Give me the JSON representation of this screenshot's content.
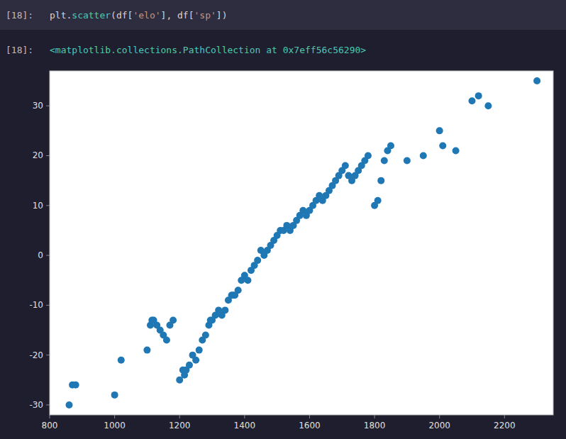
{
  "chart_data": {
    "type": "scatter",
    "annotations": [
      "[18]:",
      "plt.scatter(df['elo'], df['sp'])",
      "[18]:",
      "<matplotlib.collections.PathCollection at 0x7eff56c56290>"
    ],
    "x": [
      860,
      870,
      880,
      1000,
      1020,
      1100,
      1110,
      1115,
      1120,
      1130,
      1140,
      1150,
      1160,
      1170,
      1180,
      1200,
      1210,
      1215,
      1220,
      1230,
      1240,
      1250,
      1260,
      1270,
      1280,
      1290,
      1295,
      1300,
      1310,
      1320,
      1330,
      1340,
      1350,
      1360,
      1365,
      1370,
      1380,
      1390,
      1400,
      1410,
      1420,
      1430,
      1440,
      1450,
      1460,
      1470,
      1480,
      1490,
      1500,
      1510,
      1520,
      1530,
      1540,
      1550,
      1560,
      1570,
      1580,
      1590,
      1600,
      1610,
      1620,
      1630,
      1640,
      1650,
      1660,
      1670,
      1680,
      1690,
      1700,
      1710,
      1720,
      1730,
      1740,
      1750,
      1760,
      1770,
      1780,
      1800,
      1810,
      1820,
      1830,
      1840,
      1850,
      1900,
      1950,
      2000,
      2010,
      2050,
      2100,
      2120,
      2150,
      2300
    ],
    "values": [
      -30,
      -26,
      -26,
      -28,
      -21,
      -19,
      -14,
      -13,
      -13,
      -14,
      -15,
      -16,
      -17,
      -14,
      -13,
      -25,
      -23,
      -24,
      -23,
      -22,
      -20,
      -21,
      -19,
      -17,
      -16,
      -14,
      -13,
      -13,
      -12,
      -11,
      -12,
      -11,
      -9,
      -8,
      -8,
      -8,
      -7,
      -5,
      -4,
      -5,
      -3,
      -2,
      -1,
      1,
      0,
      1,
      2,
      3,
      4,
      5,
      5,
      6,
      5,
      6,
      7,
      8,
      9,
      8,
      9,
      10,
      11,
      12,
      11,
      12,
      13,
      14,
      15,
      16,
      17,
      18,
      16,
      15,
      16,
      17,
      18,
      19,
      20,
      10,
      11,
      15,
      19,
      21,
      22,
      19,
      20,
      25,
      22,
      21,
      31,
      32,
      30,
      35
    ],
    "color": "#1f77b4",
    "xlim": [
      800,
      2350
    ],
    "ylim": [
      -32,
      37
    ],
    "xticks": [
      800,
      1000,
      1200,
      1400,
      1600,
      1800,
      2000,
      2200
    ],
    "yticks": [
      -30,
      -20,
      -10,
      0,
      10,
      20,
      30
    ],
    "grid": false
  }
}
